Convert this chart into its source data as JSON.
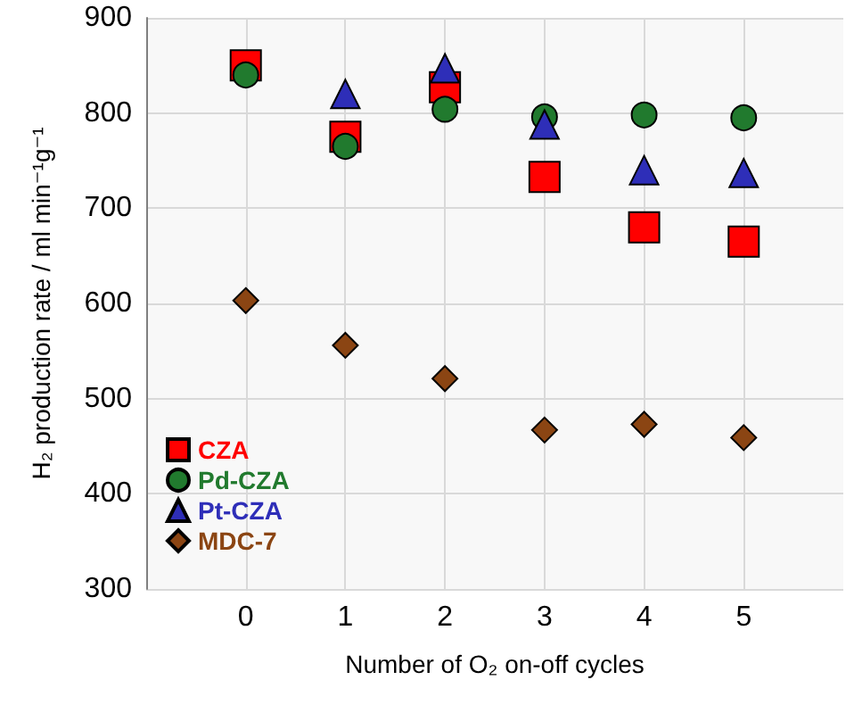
{
  "chart_data": {
    "type": "scatter",
    "xlabel": "Number of O₂ on-off cycles",
    "ylabel": "H₂ production rate / ml min⁻¹g⁻¹",
    "x": [
      0,
      1,
      2,
      3,
      4,
      5
    ],
    "series": [
      {
        "name": "CZA",
        "color": "#ff0000",
        "marker": "square",
        "values": [
          850,
          775,
          827,
          733,
          680,
          665
        ]
      },
      {
        "name": "Pd-CZA",
        "color": "#217a2e",
        "marker": "circle",
        "values": [
          840,
          765,
          804,
          796,
          798,
          795
        ]
      },
      {
        "name": "Pt-CZA",
        "color": "#2e2eb8",
        "marker": "triangle",
        "values": [
          null,
          820,
          847,
          788,
          740,
          737
        ]
      },
      {
        "name": "MDC-7",
        "color": "#8b4513",
        "marker": "diamond",
        "values": [
          603,
          556,
          521,
          467,
          473,
          459
        ]
      }
    ],
    "xlim": [
      -1,
      6
    ],
    "xticks": [
      0,
      1,
      2,
      3,
      4,
      5
    ],
    "ylim": [
      300,
      900
    ],
    "yticks": [
      300,
      400,
      500,
      600,
      700,
      800,
      900
    ],
    "grid": true,
    "legend": "bottom left"
  }
}
